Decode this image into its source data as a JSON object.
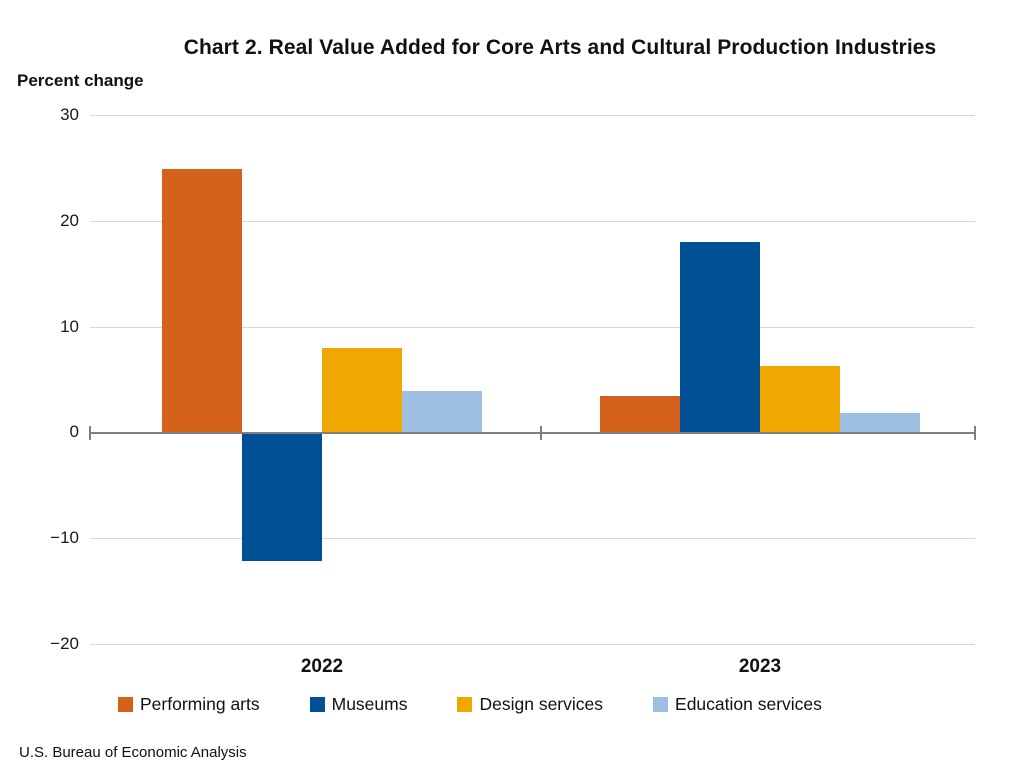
{
  "header": {
    "title": "Chart 2. Real Value Added for Core Arts and Cultural Production Industries"
  },
  "chart_data": {
    "type": "bar",
    "title": "Chart 2. Real Value Added for Core Arts and Cultural Production Industries",
    "ylabel": "Percent change",
    "xlabel": "",
    "categories": [
      "2022",
      "2023"
    ],
    "series": [
      {
        "name": "Performing arts",
        "color": "#D5621B",
        "values": [
          24.9,
          3.4
        ]
      },
      {
        "name": "Museums",
        "color": "#014F94",
        "values": [
          -12.0,
          18.0
        ]
      },
      {
        "name": "Design services",
        "color": "#F0A800",
        "values": [
          8.0,
          6.3
        ]
      },
      {
        "name": "Education services",
        "color": "#9DC0E2",
        "values": [
          3.9,
          1.8
        ]
      }
    ],
    "ylim": [
      -20,
      30
    ],
    "yticks": [
      {
        "value": 30,
        "label": "30"
      },
      {
        "value": 20,
        "label": "20"
      },
      {
        "value": 10,
        "label": "10"
      },
      {
        "value": 0,
        "label": "0"
      },
      {
        "value": -10,
        "label": "−10"
      },
      {
        "value": -20,
        "label": "−20"
      }
    ],
    "grid": true,
    "legend_position": "bottom",
    "colors": {
      "gridline": "#D8D8D8",
      "axis": "#7F7F7F"
    }
  },
  "footer": {
    "source": "U.S. Bureau of Economic Analysis"
  }
}
